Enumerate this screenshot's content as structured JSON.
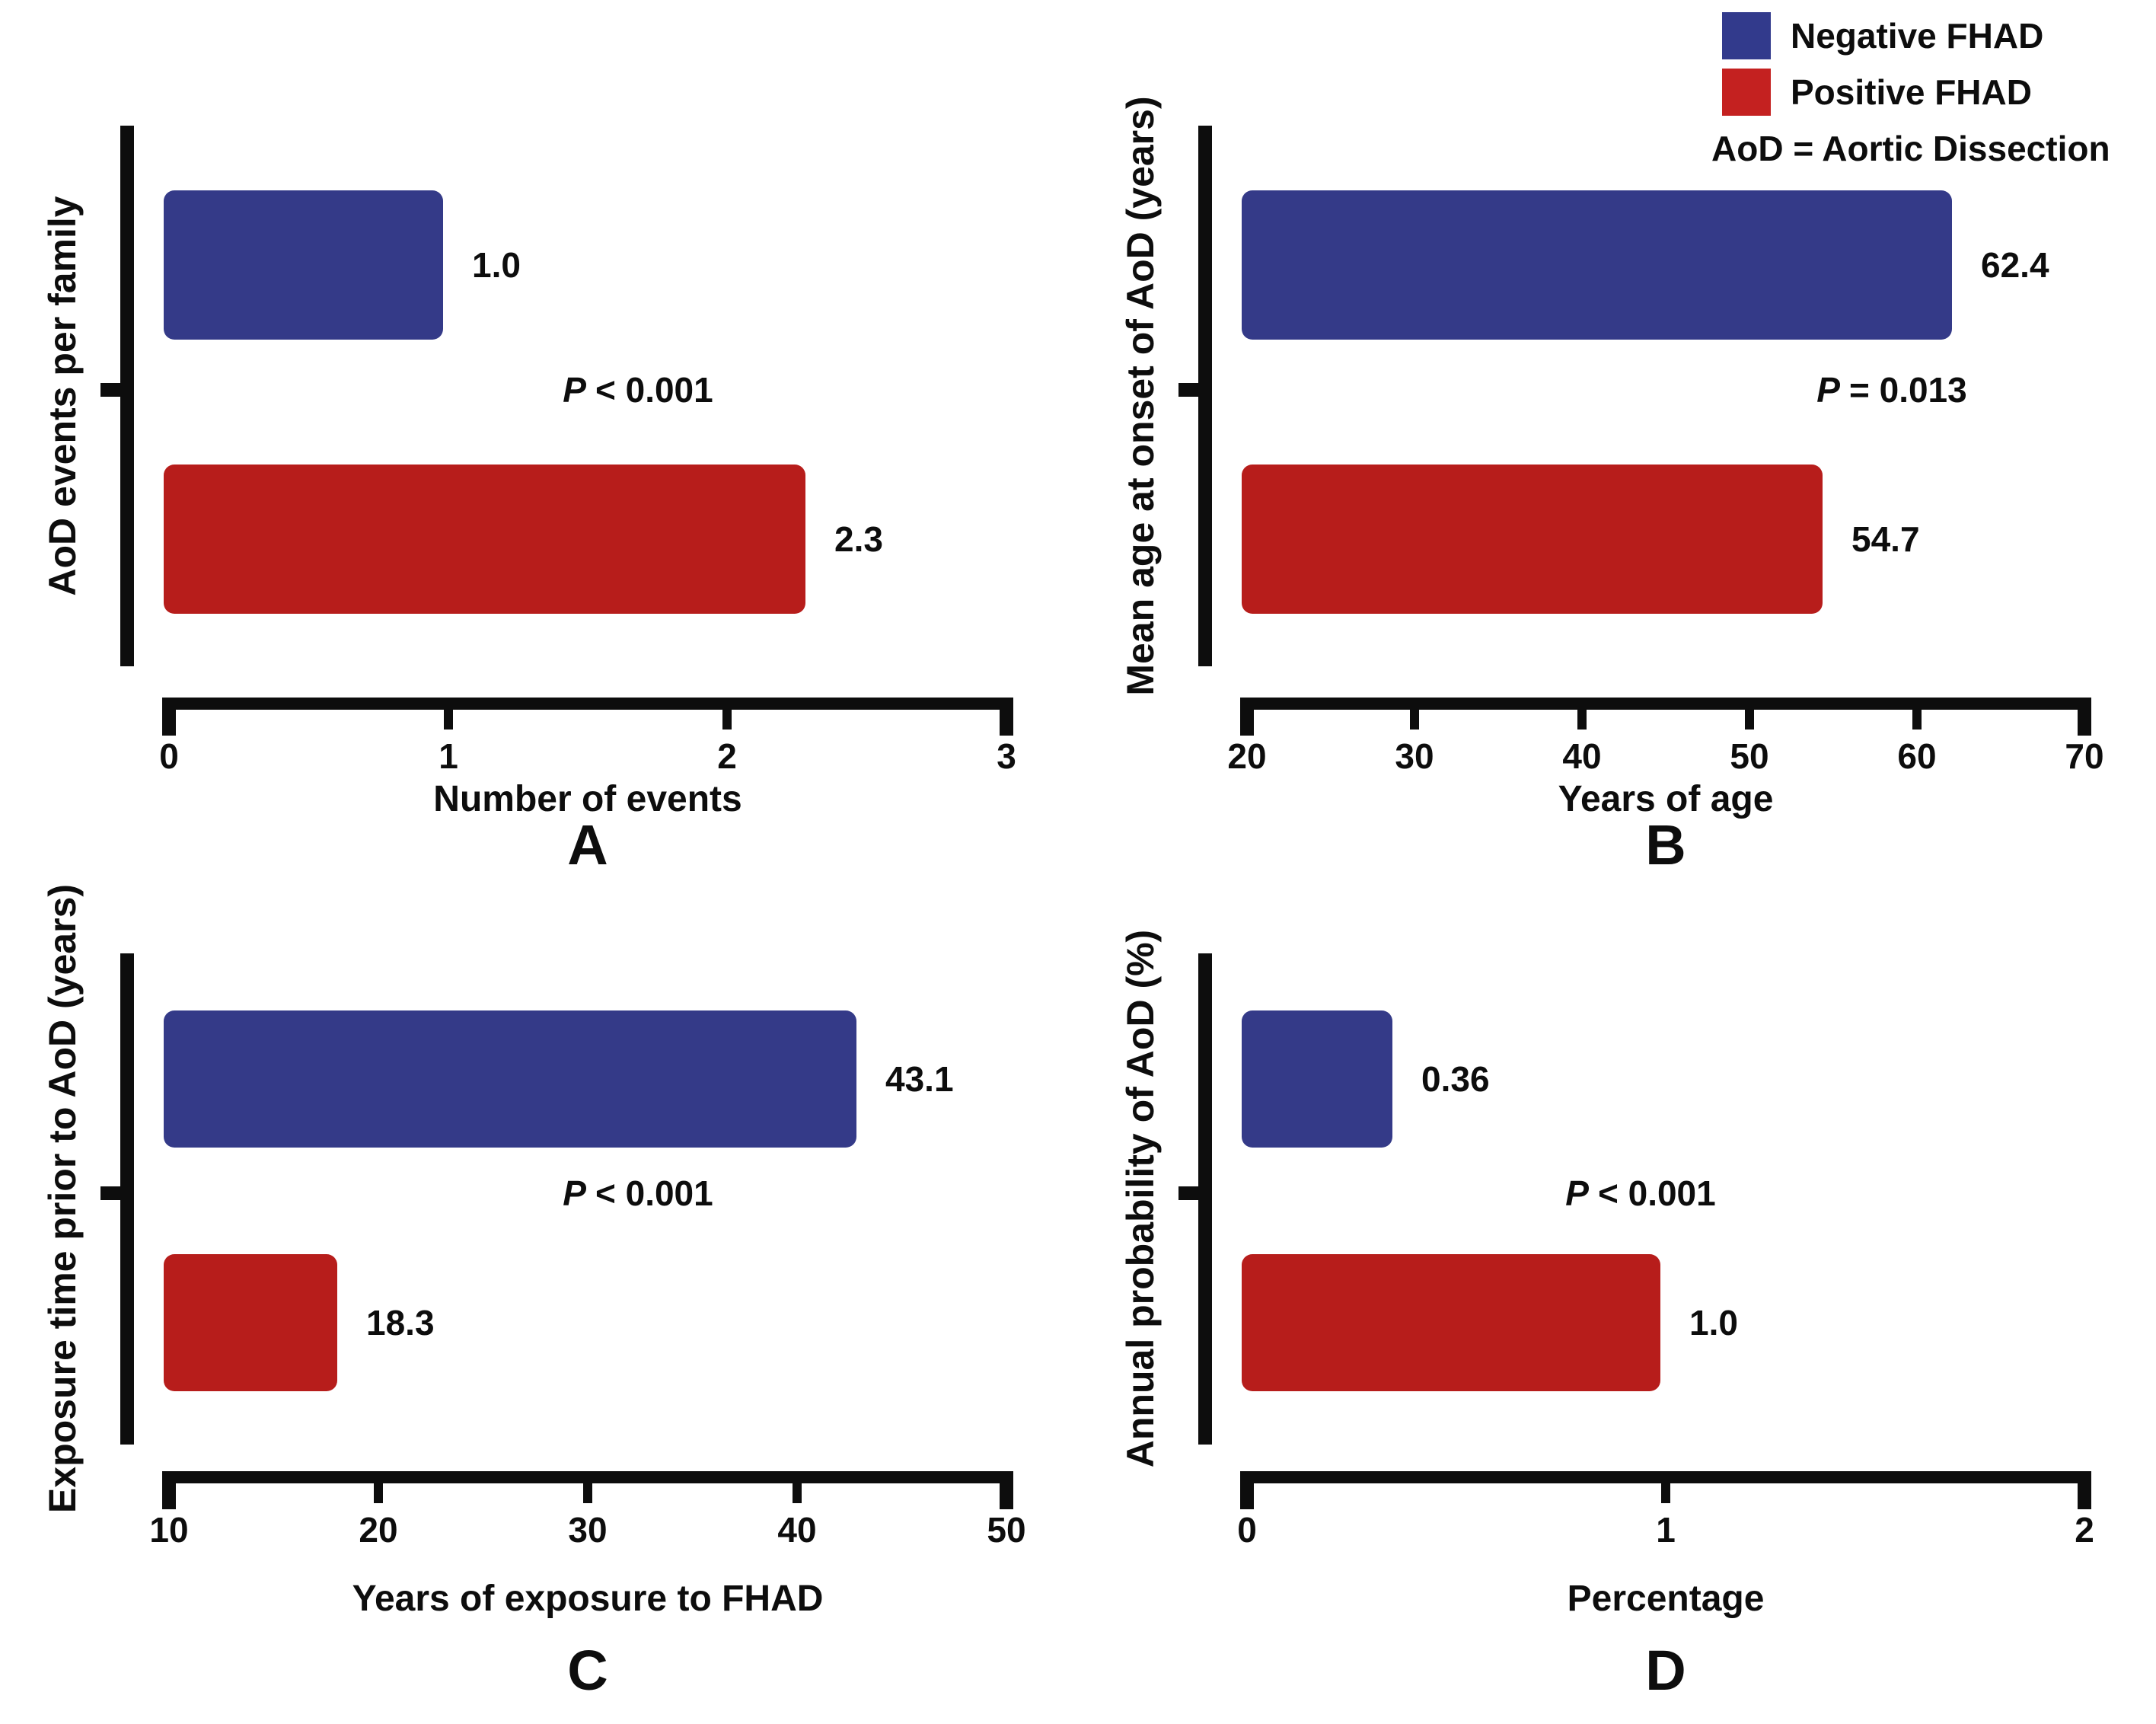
{
  "figure": {
    "background": "#ffffff",
    "legend": {
      "position": "top-right",
      "items": [
        {
          "label": "Negative FHAD",
          "color": "#323a8c"
        },
        {
          "label": "Positive FHAD",
          "color": "#c42120"
        }
      ],
      "note": "AoD = Aortic Dissection"
    },
    "colors": {
      "negative_bar": "#343a88",
      "positive_bar": "#b71d1b",
      "axis": "#0d0d0d",
      "text": "#0d0d0d"
    }
  },
  "chart_data": [
    {
      "panel_letter": "A",
      "type": "bar",
      "orientation": "horizontal",
      "categories": [
        "Negative FHAD",
        "Positive FHAD"
      ],
      "ylabel": "AoD events per family",
      "xlabel": "Number of events",
      "xlim": [
        0,
        3
      ],
      "xticks": [
        0,
        1,
        2,
        3
      ],
      "grid": false,
      "series": [
        {
          "name": "Negative FHAD",
          "value": 1.0,
          "label": "1.0"
        },
        {
          "name": "Positive FHAD",
          "value": 2.3,
          "label": "2.3"
        }
      ],
      "p_prefix": "P",
      "p_text": "< 0.001",
      "p_x_frac": 0.56
    },
    {
      "panel_letter": "B",
      "type": "bar",
      "orientation": "horizontal",
      "categories": [
        "Negative FHAD",
        "Positive FHAD"
      ],
      "ylabel": "Mean age at onset of AoD (years)",
      "xlabel": "Years of age",
      "xlim": [
        20,
        70
      ],
      "xticks": [
        20,
        30,
        40,
        50,
        60,
        70
      ],
      "grid": false,
      "series": [
        {
          "name": "Negative FHAD",
          "value": 62.4,
          "label": "62.4"
        },
        {
          "name": "Positive FHAD",
          "value": 54.7,
          "label": "54.7"
        }
      ],
      "p_prefix": "P",
      "p_text": "= 0.013",
      "p_x_frac": 0.77
    },
    {
      "panel_letter": "C",
      "type": "bar",
      "orientation": "horizontal",
      "categories": [
        "Negative FHAD",
        "Positive FHAD"
      ],
      "ylabel": "Exposure time prior to AoD (years)",
      "xlabel": "Years of exposure to FHAD",
      "xlim": [
        10,
        50
      ],
      "xticks": [
        10,
        20,
        30,
        40,
        50
      ],
      "grid": false,
      "series": [
        {
          "name": "Negative FHAD",
          "value": 43.1,
          "label": "43.1"
        },
        {
          "name": "Positive FHAD",
          "value": 18.3,
          "label": "18.3"
        }
      ],
      "p_prefix": "P",
      "p_text": "< 0.001",
      "p_x_frac": 0.56
    },
    {
      "panel_letter": "D",
      "type": "bar",
      "orientation": "horizontal",
      "categories": [
        "Negative FHAD",
        "Positive FHAD"
      ],
      "ylabel": "Annual probability of AoD (%)",
      "xlabel": "Percentage",
      "xlim": [
        0,
        2
      ],
      "xticks": [
        0,
        1,
        2
      ],
      "grid": false,
      "series": [
        {
          "name": "Negative FHAD",
          "value": 0.36,
          "label": "0.36"
        },
        {
          "name": "Positive FHAD",
          "value": 1.0,
          "label": "1.0"
        }
      ],
      "p_prefix": "P",
      "p_text": "< 0.001",
      "p_x_frac": 0.47
    }
  ]
}
